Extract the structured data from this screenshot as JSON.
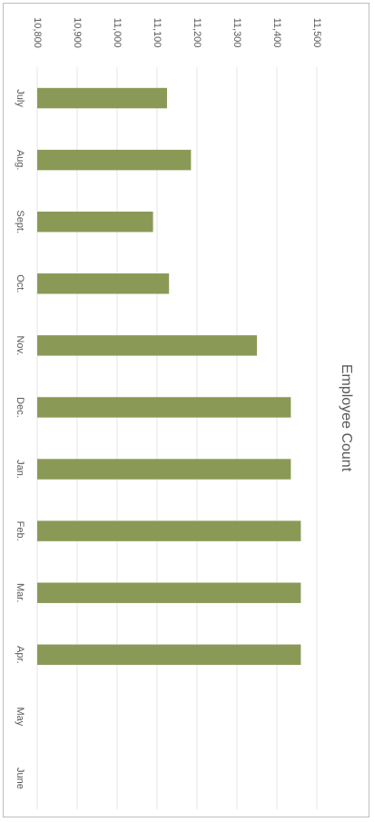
{
  "chart_data": {
    "type": "bar",
    "orientation": "rotated-90-clockwise",
    "title": "Employee Count",
    "categories": [
      "July",
      "Aug.",
      "Sept.",
      "Oct.",
      "Nov.",
      "Dec.",
      "Jan.",
      "Feb.",
      "Mar.",
      "Apr.",
      "May",
      "June"
    ],
    "values": [
      11125,
      11185,
      11090,
      11130,
      11350,
      11435,
      11435,
      11460,
      11460,
      11460,
      null,
      null
    ],
    "ylim": [
      10800,
      11500
    ],
    "yticks": [
      10800,
      10900,
      11000,
      11100,
      11200,
      11300,
      11400,
      11500
    ],
    "ytick_labels": [
      "10,800",
      "10,900",
      "11,000",
      "11,100",
      "11,200",
      "11,300",
      "11,400",
      "11,500"
    ],
    "xlabel": "",
    "ylabel": "",
    "grid": true,
    "legend": "none",
    "colors": {
      "bar": "#8a9a56",
      "grid": "#e6e6e6",
      "text": "#595959"
    }
  }
}
